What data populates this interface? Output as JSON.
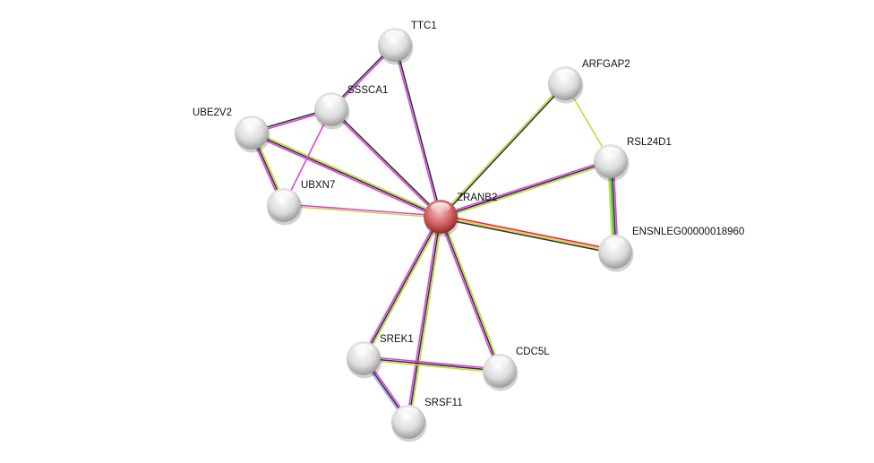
{
  "evidence_colors": {
    "textmining": "#c0dc3c",
    "coexpression": "#333333",
    "experiments": "#e040e0",
    "fusion": "#ff2020",
    "neighborhood": "#30c030",
    "homology": "#9aa8ff"
  },
  "nodes": [
    {
      "id": "ZRANB2",
      "label": "ZRANB2",
      "color": "#d86a6a",
      "query": true
    },
    {
      "id": "TTC1",
      "label": "TTC1",
      "color": "#e8e8e8"
    },
    {
      "id": "SSSCA1",
      "label": "SSSCA1",
      "color": "#e8e8e8"
    },
    {
      "id": "UBE2V2",
      "label": "UBE2V2",
      "color": "#eeeeee"
    },
    {
      "id": "UBXN7",
      "label": "UBXN7",
      "color": "#e8e8e8"
    },
    {
      "id": "ARFGAP2",
      "label": "ARFGAP2",
      "color": "#eeeeee"
    },
    {
      "id": "RSL24D1",
      "label": "RSL24D1",
      "color": "#e8e8e8"
    },
    {
      "id": "ENSNLEG00000018960",
      "label": "ENSNLEG00000018960",
      "color": "#e8e8e8"
    },
    {
      "id": "SREK1",
      "label": "SREK1",
      "color": "#e8e8e8"
    },
    {
      "id": "CDC5L",
      "label": "CDC5L",
      "color": "#eeeeee"
    },
    {
      "id": "SRSF11",
      "label": "SRSF11",
      "color": "#e8e8e8"
    }
  ],
  "edges": [
    {
      "a": "ZRANB2",
      "b": "TTC1",
      "evidence": [
        "experiments",
        "coexpression"
      ]
    },
    {
      "a": "ZRANB2",
      "b": "SSSCA1",
      "evidence": [
        "experiments",
        "coexpression"
      ]
    },
    {
      "a": "ZRANB2",
      "b": "UBE2V2",
      "evidence": [
        "experiments",
        "coexpression",
        "textmining"
      ]
    },
    {
      "a": "ZRANB2",
      "b": "UBXN7",
      "evidence": [
        "textmining",
        "experiments"
      ]
    },
    {
      "a": "ZRANB2",
      "b": "ARFGAP2",
      "evidence": [
        "textmining",
        "coexpression"
      ]
    },
    {
      "a": "ZRANB2",
      "b": "RSL24D1",
      "evidence": [
        "experiments",
        "coexpression",
        "textmining"
      ]
    },
    {
      "a": "ZRANB2",
      "b": "ENSNLEG00000018960",
      "evidence": [
        "fusion",
        "textmining",
        "coexpression"
      ]
    },
    {
      "a": "ZRANB2",
      "b": "SREK1",
      "evidence": [
        "textmining",
        "coexpression",
        "experiments"
      ]
    },
    {
      "a": "ZRANB2",
      "b": "SRSF11",
      "evidence": [
        "textmining",
        "coexpression",
        "experiments"
      ]
    },
    {
      "a": "ZRANB2",
      "b": "CDC5L",
      "evidence": [
        "textmining",
        "coexpression",
        "experiments"
      ]
    },
    {
      "a": "TTC1",
      "b": "SSSCA1",
      "evidence": [
        "experiments",
        "coexpression"
      ]
    },
    {
      "a": "SSSCA1",
      "b": "UBE2V2",
      "evidence": [
        "experiments",
        "coexpression"
      ]
    },
    {
      "a": "SSSCA1",
      "b": "UBXN7",
      "evidence": [
        "experiments"
      ]
    },
    {
      "a": "UBE2V2",
      "b": "UBXN7",
      "evidence": [
        "textmining",
        "coexpression",
        "experiments"
      ]
    },
    {
      "a": "ARFGAP2",
      "b": "RSL24D1",
      "evidence": [
        "textmining"
      ]
    },
    {
      "a": "RSL24D1",
      "b": "ENSNLEG00000018960",
      "evidence": [
        "experiments",
        "coexpression",
        "neighborhood",
        "textmining"
      ]
    },
    {
      "a": "SREK1",
      "b": "CDC5L",
      "evidence": [
        "experiments",
        "coexpression",
        "textmining"
      ]
    },
    {
      "a": "SREK1",
      "b": "SRSF11",
      "evidence": [
        "experiments",
        "coexpression",
        "homology"
      ]
    }
  ]
}
